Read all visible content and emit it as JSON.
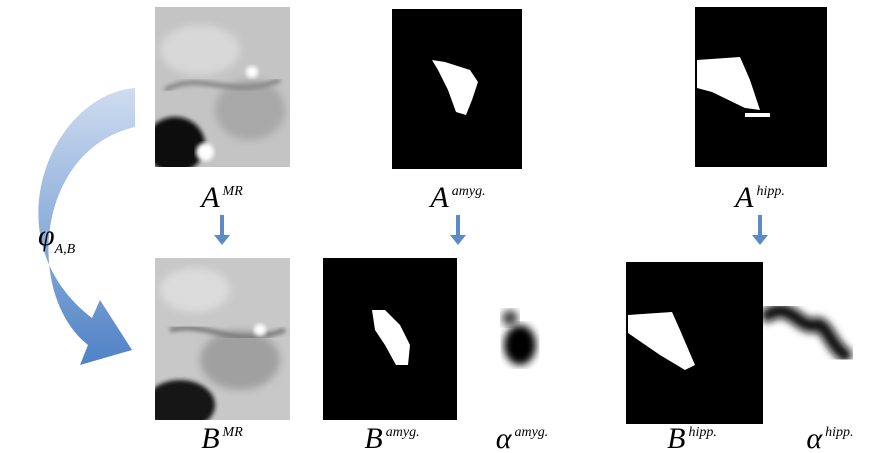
{
  "phi": {
    "base": "φ",
    "sub": "A,B"
  },
  "top_labels": [
    {
      "base": "A",
      "sup": "MR"
    },
    {
      "base": "A",
      "sup": "amyg."
    },
    {
      "base": "A",
      "sup": "hipp."
    }
  ],
  "bottom_labels": [
    {
      "base": "B",
      "sup": "MR"
    },
    {
      "base": "B",
      "sup": "amyg."
    },
    {
      "base": "α",
      "sup": "amyg."
    },
    {
      "base": "B",
      "sup": "hipp."
    },
    {
      "base": "α",
      "sup": "hipp."
    }
  ]
}
